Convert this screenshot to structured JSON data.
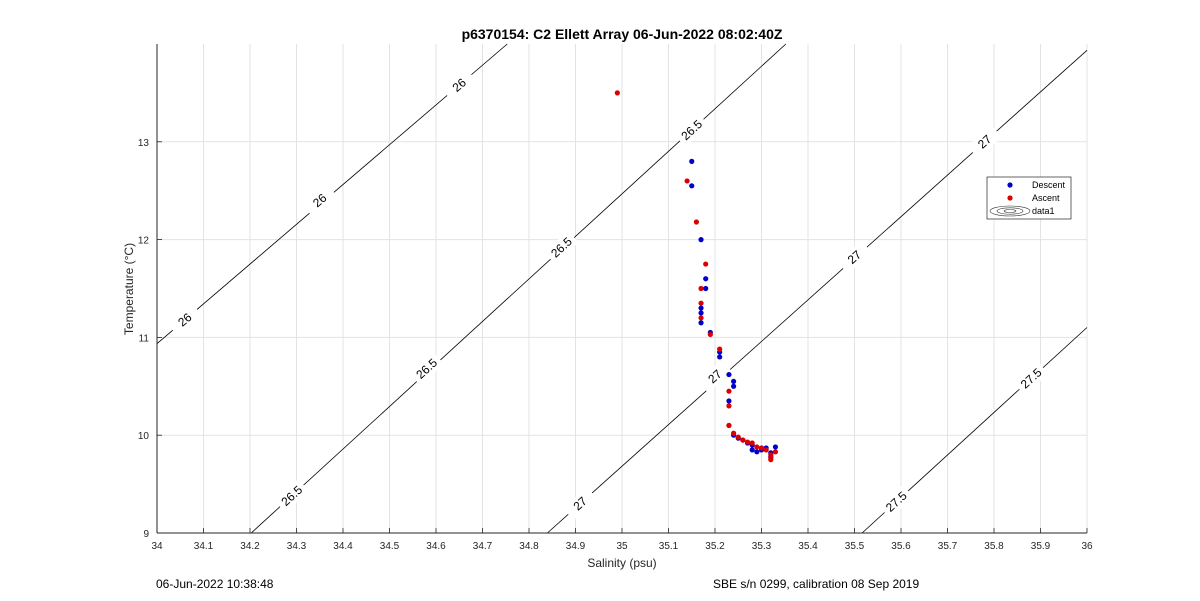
{
  "chart_data": {
    "type": "scatter",
    "title": "p6370154: C2 Ellett Array 06-Jun-2022 08:02:40Z",
    "xlabel": "Salinity (psu)",
    "ylabel": "Temperature (°C)",
    "xlim": [
      34,
      36
    ],
    "ylim": [
      9,
      14
    ],
    "xticks": [
      34,
      34.1,
      34.2,
      34.3,
      34.4,
      34.5,
      34.6,
      34.7,
      34.8,
      34.9,
      35,
      35.1,
      35.2,
      35.3,
      35.4,
      35.5,
      35.6,
      35.7,
      35.8,
      35.9,
      36
    ],
    "xtick_labels": [
      "34",
      "34.1",
      "34.2",
      "34.3",
      "34.4",
      "34.5",
      "34.6",
      "34.7",
      "34.8",
      "34.9",
      "35",
      "35.1",
      "35.2",
      "35.3",
      "35.4",
      "35.5",
      "35.6",
      "35.7",
      "35.8",
      "35.9",
      "36"
    ],
    "yticks": [
      9,
      10,
      11,
      12,
      13
    ],
    "ytick_labels": [
      "9",
      "10",
      "11",
      "12",
      "13"
    ],
    "grid": true,
    "legend_position": "right",
    "series": [
      {
        "name": "Descent",
        "color": "#0000cc",
        "x": [
          35.15,
          35.15,
          35.17,
          35.18,
          35.18,
          35.17,
          35.17,
          35.17,
          35.19,
          35.21,
          35.21,
          35.23,
          35.24,
          35.24,
          35.23,
          35.23,
          35.24,
          35.25,
          35.26,
          35.27,
          35.28,
          35.28,
          35.29,
          35.3,
          35.31,
          35.32,
          35.32,
          35.33
        ],
        "y": [
          12.8,
          12.55,
          12.0,
          11.6,
          11.5,
          11.3,
          11.25,
          11.15,
          11.05,
          10.85,
          10.8,
          10.62,
          10.55,
          10.5,
          10.35,
          10.1,
          10.0,
          9.97,
          9.95,
          9.92,
          9.9,
          9.85,
          9.83,
          9.85,
          9.87,
          9.82,
          9.78,
          9.88
        ]
      },
      {
        "name": "Ascent",
        "color": "#dd0000",
        "x": [
          34.99,
          35.14,
          35.16,
          35.18,
          35.17,
          35.17,
          35.17,
          35.19,
          35.21,
          35.23,
          35.23,
          35.23,
          35.24,
          35.25,
          35.26,
          35.27,
          35.28,
          35.29,
          35.3,
          35.31,
          35.32,
          35.32,
          35.33,
          35.32
        ],
        "y": [
          13.5,
          12.6,
          12.18,
          11.75,
          11.5,
          11.35,
          11.2,
          11.03,
          10.88,
          10.45,
          10.3,
          10.1,
          10.02,
          9.98,
          9.95,
          9.93,
          9.92,
          9.88,
          9.87,
          9.85,
          9.8,
          9.77,
          9.83,
          9.75
        ]
      }
    ],
    "contours": [
      {
        "level": 26,
        "labels": [
          {
            "text": "26",
            "x": 34.06,
            "y": 11.18
          },
          {
            "text": "26",
            "x": 34.35,
            "y": 12.4
          },
          {
            "text": "26",
            "x": 34.65,
            "y": 13.58
          }
        ]
      },
      {
        "level": 26.5,
        "labels": [
          {
            "text": "26.5",
            "x": 34.29,
            "y": 9.38
          },
          {
            "text": "26.5",
            "x": 34.58,
            "y": 10.68
          },
          {
            "text": "26.5",
            "x": 34.87,
            "y": 11.92
          },
          {
            "text": "26.5",
            "x": 35.15,
            "y": 13.12
          }
        ]
      },
      {
        "level": 27,
        "labels": [
          {
            "text": "27",
            "x": 34.91,
            "y": 9.3
          },
          {
            "text": "27",
            "x": 35.2,
            "y": 10.6
          },
          {
            "text": "27",
            "x": 35.5,
            "y": 11.82
          },
          {
            "text": "27",
            "x": 35.78,
            "y": 13.0
          }
        ]
      },
      {
        "level": 27.5,
        "labels": [
          {
            "text": "27.5",
            "x": 35.59,
            "y": 9.32
          },
          {
            "text": "27.5",
            "x": 35.88,
            "y": 10.58
          }
        ]
      }
    ],
    "legend_entries": [
      "Descent",
      "Ascent",
      "data1"
    ]
  },
  "footer": {
    "left": "06-Jun-2022 10:38:48",
    "right": "SBE s/n 0299, calibration 08 Sep 2019"
  }
}
